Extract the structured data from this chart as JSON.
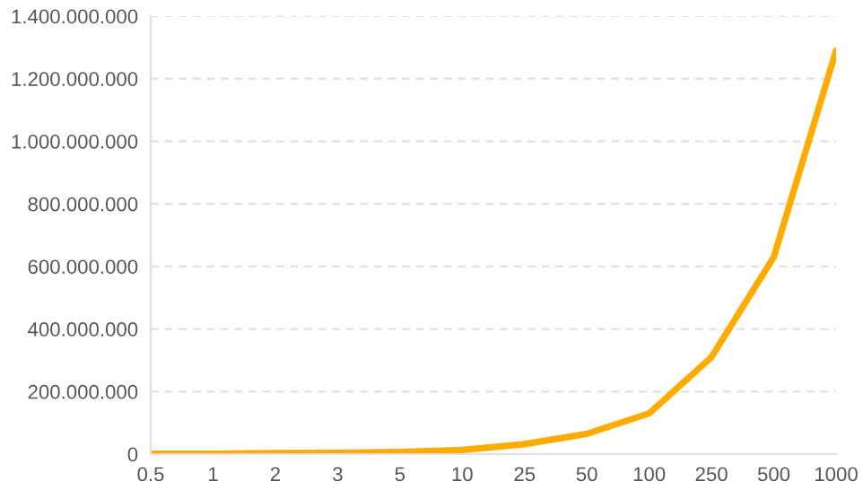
{
  "chart_data": {
    "type": "line",
    "categories": [
      "0.5",
      "1",
      "2",
      "3",
      "5",
      "10",
      "25",
      "50",
      "100",
      "250",
      "500",
      "1000"
    ],
    "series": [
      {
        "color": "#ffab00",
        "values": [
          1000000,
          1000000,
          3000000,
          4000000,
          7000000,
          13000000,
          32000000,
          65000000,
          130000000,
          310000000,
          630000000,
          1290000000
        ]
      }
    ],
    "ylim": [
      0,
      1400000000
    ],
    "yticks": [
      {
        "value": 0,
        "label": "0"
      },
      {
        "value": 200000000,
        "label": "200.000.000"
      },
      {
        "value": 400000000,
        "label": "400.000.000"
      },
      {
        "value": 600000000,
        "label": "600.000.000"
      },
      {
        "value": 800000000,
        "label": "800.000.000"
      },
      {
        "value": 1000000000,
        "label": "1.000.000.000"
      },
      {
        "value": 1200000000,
        "label": "1.200.000.000"
      },
      {
        "value": 1400000000,
        "label": "1.400.000.000"
      }
    ],
    "grid": "y",
    "legend": false,
    "marker": "none",
    "line_style": "solid"
  }
}
